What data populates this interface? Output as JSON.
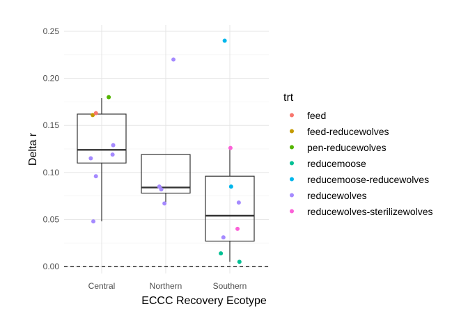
{
  "chart_data": {
    "type": "box+scatter",
    "title": "",
    "xlabel": "ECCC Recovery Ecotype",
    "ylabel": "Delta r",
    "ylim": [
      -0.01,
      0.255
    ],
    "yticks": [
      0.0,
      0.05,
      0.1,
      0.15,
      0.2,
      0.25
    ],
    "ytick_labels": [
      "0.00",
      "0.05",
      "0.10",
      "0.15",
      "0.20",
      "0.25"
    ],
    "categories": [
      "Central",
      "Northern",
      "Southern"
    ],
    "reference_line": {
      "y": 0,
      "style": "dashed"
    },
    "grid": true,
    "legend": {
      "title": "trt",
      "position": "right",
      "entries": [
        {
          "name": "feed",
          "color": "#F8766D"
        },
        {
          "name": "feed-reducewolves",
          "color": "#C49A00"
        },
        {
          "name": "pen-reducewolves",
          "color": "#53B400"
        },
        {
          "name": "reducemoose",
          "color": "#00C094"
        },
        {
          "name": "reducemoose-reducewolves",
          "color": "#00B6EB"
        },
        {
          "name": "reducewolves",
          "color": "#A58AFF"
        },
        {
          "name": "reducewolves-sterilizewolves",
          "color": "#FB61D7"
        }
      ]
    },
    "boxes": [
      {
        "category": "Central",
        "whisker_low": 0.048,
        "q1": 0.11,
        "median": 0.124,
        "q3": 0.162,
        "whisker_high": 0.179
      },
      {
        "category": "Northern",
        "whisker_low": 0.067,
        "q1": 0.078,
        "median": 0.084,
        "q3": 0.119,
        "whisker_high": 0.119
      },
      {
        "category": "Southern",
        "whisker_low": 0.005,
        "q1": 0.027,
        "median": 0.054,
        "q3": 0.096,
        "whisker_high": 0.126
      }
    ],
    "points": [
      {
        "category": "Central",
        "jitter": -0.14,
        "y": 0.161,
        "trt": "feed-reducewolves"
      },
      {
        "category": "Central",
        "jitter": -0.09,
        "y": 0.163,
        "trt": "feed"
      },
      {
        "category": "Central",
        "jitter": 0.11,
        "y": 0.18,
        "trt": "pen-reducewolves"
      },
      {
        "category": "Central",
        "jitter": 0.18,
        "y": 0.129,
        "trt": "reducewolves"
      },
      {
        "category": "Central",
        "jitter": 0.17,
        "y": 0.119,
        "trt": "reducewolves"
      },
      {
        "category": "Central",
        "jitter": -0.17,
        "y": 0.115,
        "trt": "reducewolves"
      },
      {
        "category": "Central",
        "jitter": -0.09,
        "y": 0.096,
        "trt": "reducewolves"
      },
      {
        "category": "Central",
        "jitter": -0.13,
        "y": 0.048,
        "trt": "reducewolves"
      },
      {
        "category": "Northern",
        "jitter": 0.12,
        "y": 0.22,
        "trt": "reducewolves"
      },
      {
        "category": "Northern",
        "jitter": -0.1,
        "y": 0.085,
        "trt": "reducewolves"
      },
      {
        "category": "Northern",
        "jitter": -0.07,
        "y": 0.082,
        "trt": "reducewolves"
      },
      {
        "category": "Northern",
        "jitter": -0.02,
        "y": 0.067,
        "trt": "reducewolves"
      },
      {
        "category": "Southern",
        "jitter": -0.08,
        "y": 0.24,
        "trt": "reducemoose-reducewolves"
      },
      {
        "category": "Southern",
        "jitter": 0.01,
        "y": 0.126,
        "trt": "reducewolves-sterilizewolves"
      },
      {
        "category": "Southern",
        "jitter": 0.02,
        "y": 0.085,
        "trt": "reducemoose-reducewolves"
      },
      {
        "category": "Southern",
        "jitter": 0.14,
        "y": 0.068,
        "trt": "reducewolves"
      },
      {
        "category": "Southern",
        "jitter": 0.12,
        "y": 0.04,
        "trt": "reducewolves-sterilizewolves"
      },
      {
        "category": "Southern",
        "jitter": -0.1,
        "y": 0.031,
        "trt": "reducewolves"
      },
      {
        "category": "Southern",
        "jitter": -0.14,
        "y": 0.014,
        "trt": "reducemoose"
      },
      {
        "category": "Southern",
        "jitter": 0.15,
        "y": 0.005,
        "trt": "reducemoose"
      }
    ]
  }
}
